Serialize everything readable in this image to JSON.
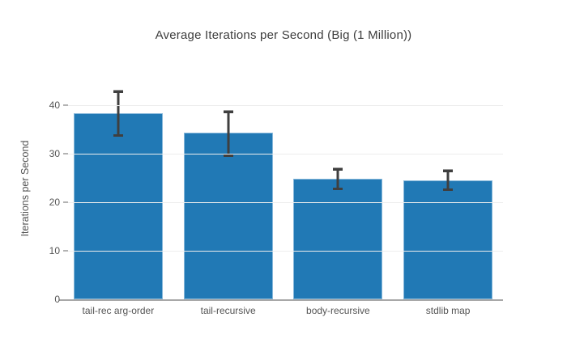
{
  "chart_data": {
    "type": "bar",
    "title": "Average Iterations per Second (Big (1 Million))",
    "xlabel": "",
    "ylabel": "Iterations per Second",
    "categories": [
      "tail-rec arg-order",
      "tail-recursive",
      "body-recursive",
      "stdlib map"
    ],
    "values": [
      38.4,
      34.3,
      24.8,
      24.5
    ],
    "error_high": [
      43.0,
      38.8,
      27.0,
      26.7
    ],
    "error_low": [
      33.6,
      29.5,
      22.7,
      22.5
    ],
    "ylim": [
      0,
      45
    ],
    "yticks": [
      0,
      10,
      20,
      30,
      40
    ],
    "grid": "horizontal",
    "legend": "none",
    "colors": {
      "bar_fill": "#2179b5",
      "bar_edge": "#86b7da",
      "error_bar": "#3f3f3f",
      "axis_line": "#a8a8a8",
      "gridline": "#ededed",
      "tick_mark": "#b3b3b3",
      "tick_text": "#555555",
      "title_text": "#3d3d3d",
      "background": "#ffffff"
    }
  }
}
